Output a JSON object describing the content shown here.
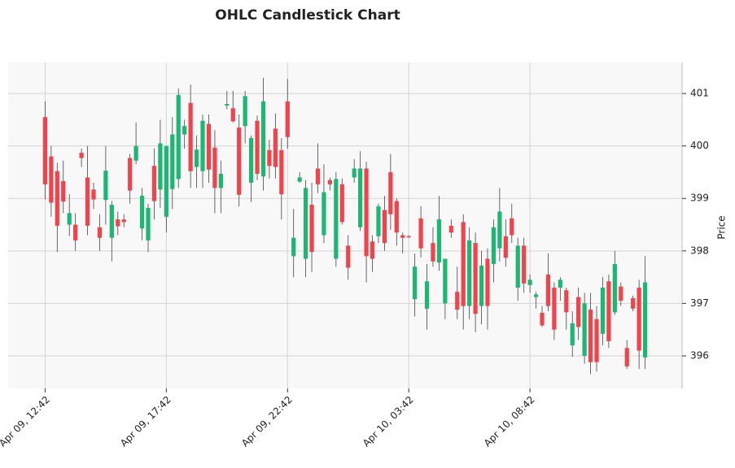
{
  "chart_data": {
    "type": "candlestick",
    "title": "OHLC Candlestick Chart",
    "y_label": "Price",
    "xlim": [
      -6.1,
      105.1
    ],
    "ylim": [
      395.38,
      401.59
    ],
    "xticks": [
      {
        "value": 0,
        "label": "Apr 09, 12:42"
      },
      {
        "value": 20,
        "label": "Apr 09, 17:42"
      },
      {
        "value": 40,
        "label": "Apr 09, 22:42"
      },
      {
        "value": 60,
        "label": "Apr 10, 03:42"
      },
      {
        "value": 80,
        "label": "Apr 10, 08:42"
      }
    ],
    "yticks": [
      396,
      397,
      398,
      399,
      400,
      401
    ],
    "grid": true,
    "up_color": "#1db673",
    "down_color": "#f0434b",
    "open": [
      400.55,
      399.8,
      399.52,
      399.33,
      398.5,
      398.5,
      399.87,
      399.4,
      399.17,
      398.45,
      398.97,
      398.25,
      398.6,
      398.6,
      399.77,
      399.72,
      398.43,
      398.2,
      399.62,
      399.17,
      398.65,
      399.18,
      399.37,
      400.22,
      400.82,
      399.6,
      399.52,
      400.42,
      399.97,
      399.2,
      400.77,
      400.72,
      400.35,
      400.38,
      399.3,
      400.48,
      399.42,
      399.92,
      400.33,
      399.92,
      400.85,
      397.9,
      399.32,
      397.85,
      398.88,
      399.57,
      398.3,
      399.35,
      397.85,
      399.27,
      398.1,
      399.4,
      398.45,
      399.57,
      398.18,
      398.28,
      398.78,
      399.5,
      398.95,
      398.3,
      398.28,
      397.08,
      398.62,
      396.9,
      398.15,
      397.78,
      397.0,
      398.48,
      397.22,
      398.55,
      396.95,
      398.15,
      396.95,
      397.85,
      397.75,
      398.05,
      398.28,
      398.62,
      397.3,
      398.1,
      397.35,
      397.12,
      396.82,
      397.55,
      397.3,
      397.3,
      397.25,
      396.2,
      397.12,
      396.0,
      396.88,
      396.7,
      396.42,
      397.42,
      396.83,
      397.32,
      396.15,
      397.1,
      397.3,
      395.97
    ],
    "high": [
      400.85,
      400.0,
      399.68,
      399.72,
      399.08,
      398.72,
      399.95,
      400.0,
      399.3,
      398.7,
      400.0,
      398.95,
      398.75,
      398.7,
      399.85,
      400.45,
      399.2,
      398.9,
      399.95,
      400.5,
      400.0,
      400.55,
      401.1,
      400.5,
      401.17,
      400.2,
      400.6,
      400.6,
      400.3,
      399.72,
      401.05,
      401.05,
      400.6,
      401.05,
      400.2,
      400.58,
      401.3,
      400.12,
      400.62,
      400.15,
      401.28,
      398.8,
      399.5,
      399.35,
      399.3,
      400.05,
      399.65,
      399.4,
      399.5,
      399.38,
      398.3,
      399.75,
      399.9,
      399.7,
      398.3,
      398.9,
      399.05,
      399.85,
      399.0,
      398.35,
      398.3,
      397.95,
      398.85,
      397.75,
      398.45,
      399.05,
      397.85,
      398.6,
      397.7,
      398.7,
      398.45,
      398.35,
      398.0,
      398.05,
      398.6,
      399.2,
      398.6,
      398.9,
      398.25,
      398.25,
      397.55,
      397.22,
      396.95,
      397.95,
      397.4,
      397.5,
      397.3,
      396.85,
      397.3,
      397.2,
      397.2,
      396.95,
      397.5,
      397.55,
      398.0,
      397.4,
      396.3,
      397.15,
      397.45,
      397.9
    ],
    "low": [
      398.98,
      398.65,
      397.98,
      398.72,
      398.28,
      398.0,
      399.6,
      398.3,
      398.8,
      398.0,
      398.5,
      397.8,
      398.3,
      398.45,
      398.9,
      399.65,
      398.2,
      397.98,
      398.6,
      398.82,
      398.35,
      398.8,
      399.2,
      399.95,
      399.2,
      399.2,
      399.2,
      399.3,
      398.72,
      398.72,
      400.7,
      400.45,
      398.85,
      400.05,
      398.93,
      399.35,
      399.15,
      399.38,
      399.38,
      398.6,
      399.95,
      397.5,
      399.3,
      397.5,
      397.6,
      399.1,
      398.15,
      399.15,
      397.7,
      398.5,
      397.45,
      399.3,
      398.38,
      397.4,
      397.6,
      398.15,
      398.0,
      398.4,
      398.1,
      397.95,
      398.25,
      396.75,
      397.88,
      396.5,
      397.7,
      397.62,
      396.7,
      398.25,
      396.7,
      396.5,
      396.7,
      396.45,
      396.6,
      396.5,
      397.4,
      397.8,
      397.7,
      398.15,
      397.05,
      397.2,
      397.2,
      396.9,
      396.55,
      396.85,
      396.3,
      397.05,
      396.5,
      395.98,
      396.3,
      395.85,
      395.65,
      395.7,
      396.2,
      396.15,
      396.78,
      396.95,
      395.75,
      396.85,
      395.75,
      395.75
    ],
    "close": [
      399.27,
      398.92,
      398.48,
      398.94,
      398.72,
      398.2,
      399.77,
      398.48,
      398.98,
      398.25,
      399.53,
      398.88,
      398.47,
      398.55,
      399.15,
      400.0,
      399.05,
      398.82,
      398.95,
      400.05,
      400.0,
      400.22,
      400.97,
      400.38,
      399.52,
      399.93,
      400.48,
      399.55,
      399.2,
      399.47,
      400.8,
      400.47,
      399.07,
      400.95,
      400.15,
      399.47,
      400.85,
      399.62,
      399.6,
      399.08,
      400.17,
      398.25,
      399.4,
      399.2,
      397.98,
      399.27,
      399.12,
      399.27,
      399.37,
      398.55,
      397.68,
      399.57,
      399.57,
      397.9,
      397.85,
      398.85,
      398.15,
      398.7,
      398.35,
      398.25,
      398.27,
      397.7,
      398.05,
      397.42,
      397.8,
      398.6,
      397.85,
      398.35,
      396.88,
      396.95,
      398.2,
      396.8,
      397.72,
      396.95,
      398.45,
      398.75,
      397.87,
      398.3,
      398.1,
      397.38,
      397.45,
      397.17,
      396.58,
      396.95,
      396.5,
      397.45,
      396.83,
      396.62,
      396.55,
      397.0,
      395.88,
      395.88,
      397.3,
      396.28,
      397.75,
      397.05,
      395.8,
      396.9,
      396.1,
      397.4
    ]
  }
}
